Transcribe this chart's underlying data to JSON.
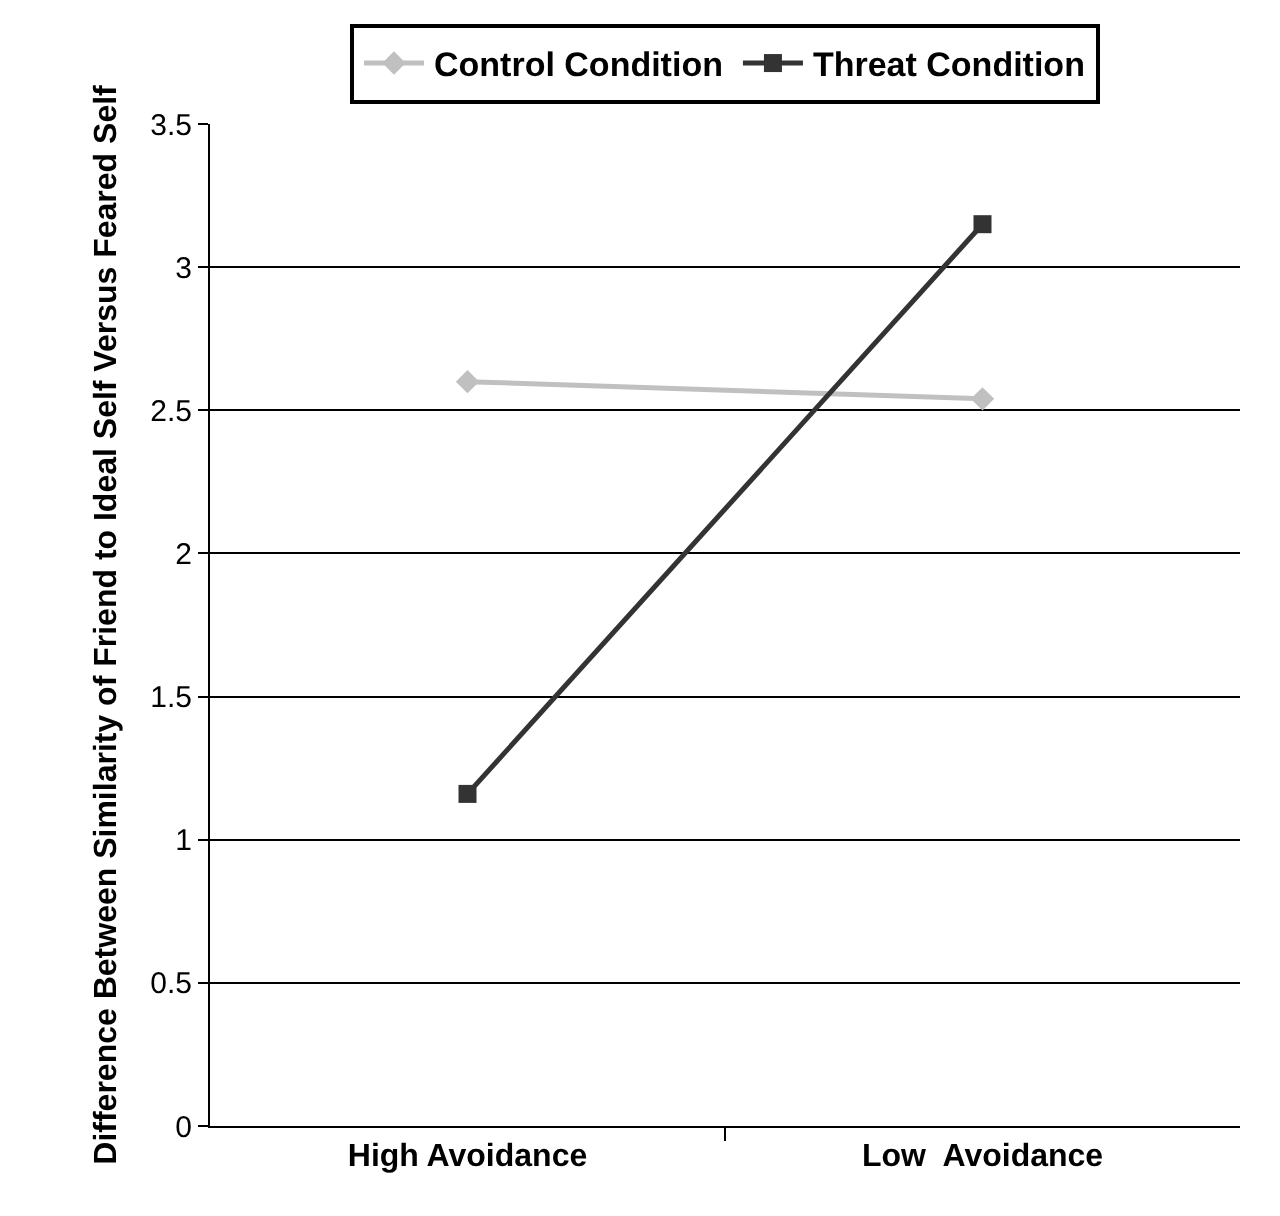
{
  "chart_data": {
    "type": "line",
    "ylabel": "Difference Between Similarity of Friend to Ideal Self Versus Feared Self",
    "categories": [
      "High Avoidance",
      "Low  Avoidance"
    ],
    "series": [
      {
        "name": "Control Condition",
        "color": "#c0c0c0",
        "marker": "diamond",
        "values": [
          2.6,
          2.54
        ]
      },
      {
        "name": "Threat Condition",
        "color": "#333333",
        "marker": "square",
        "values": [
          1.16,
          3.15
        ]
      }
    ],
    "ylim": [
      0,
      3.5
    ],
    "yticks": [
      0,
      0.5,
      1,
      1.5,
      2,
      2.5,
      3,
      3.5
    ],
    "grid": "y",
    "legend": "top",
    "line_style": "solid"
  }
}
